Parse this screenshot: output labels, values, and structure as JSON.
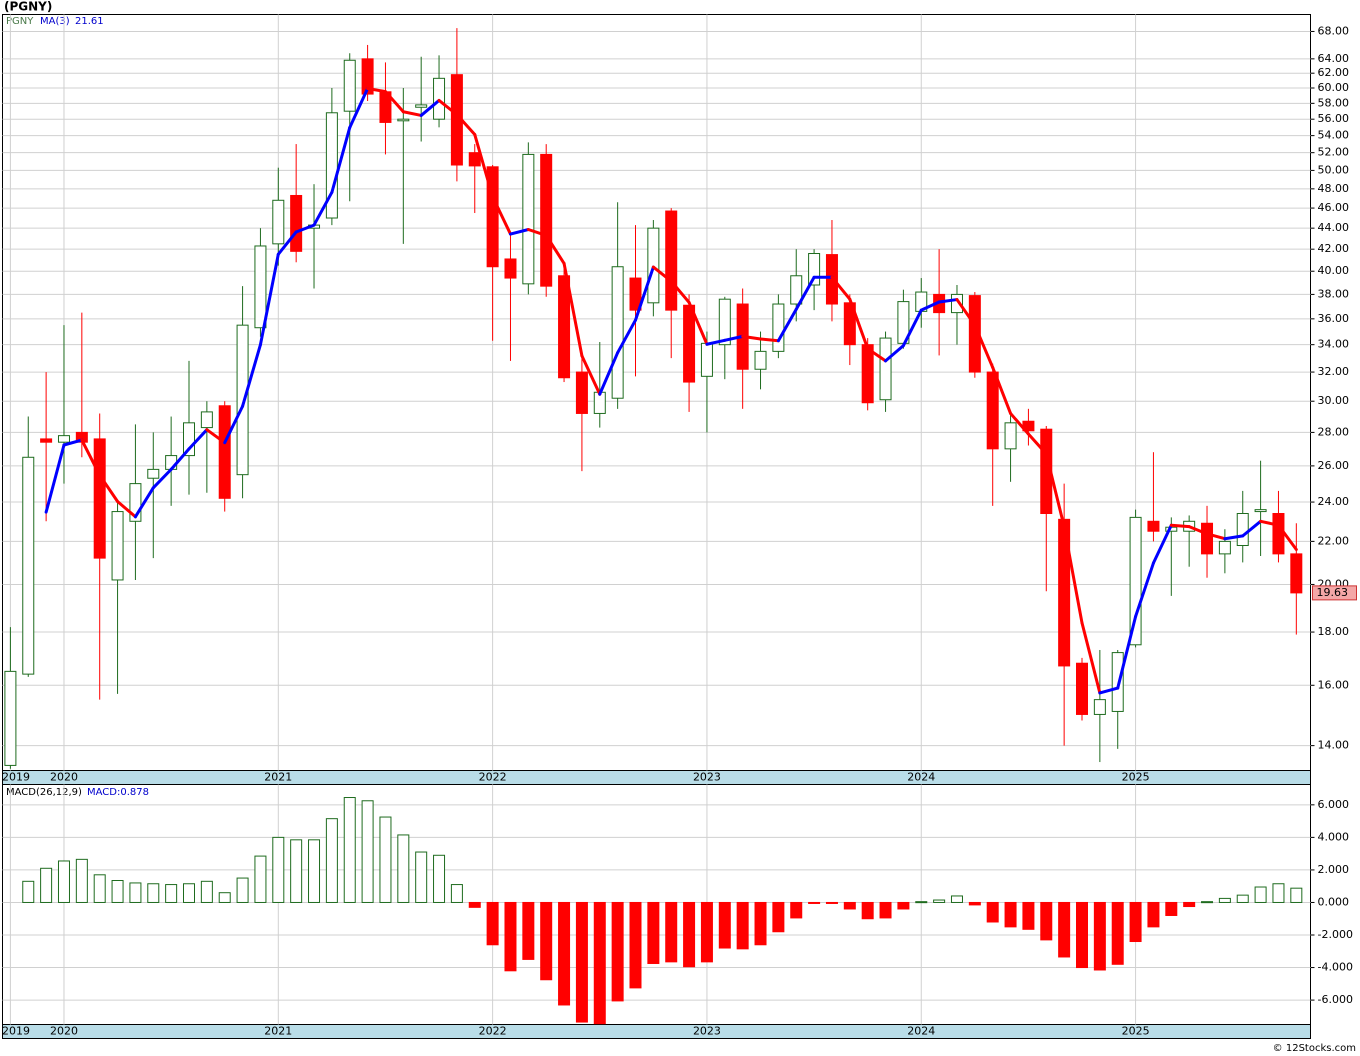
{
  "chart_data": [
    {
      "type": "candlestick",
      "title": "(PGNY)",
      "symbol": "PGNY",
      "categories": [
        "2019",
        null,
        null,
        "2020",
        null,
        null,
        null,
        null,
        null,
        null,
        null,
        null,
        null,
        null,
        null,
        "2021",
        null,
        null,
        null,
        null,
        null,
        null,
        null,
        null,
        null,
        null,
        null,
        "2022",
        null,
        null,
        null,
        null,
        null,
        null,
        null,
        null,
        null,
        null,
        null,
        "2023",
        null,
        null,
        null,
        null,
        null,
        null,
        null,
        null,
        null,
        null,
        null,
        "2024",
        null,
        null,
        null,
        null,
        null,
        null,
        null,
        null,
        null,
        null,
        null,
        "2025",
        null,
        null,
        null,
        null,
        null,
        null,
        null,
        null,
        null
      ],
      "open": [
        13.4,
        16.4,
        27.6,
        27.4,
        28,
        27.6,
        20.2,
        23,
        25.3,
        25.8,
        26.6,
        28.3,
        29.7,
        25.5,
        35.3,
        42.5,
        47.3,
        44,
        45,
        57,
        64,
        59.5,
        55.8,
        57.5,
        56,
        61.8,
        52,
        50.4,
        41.1,
        38.9,
        51.8,
        39.6,
        32,
        29.2,
        30.2,
        39.4,
        37.3,
        45.7,
        37.1,
        31.7,
        34,
        37.2,
        32.2,
        33.5,
        37.2,
        38.8,
        41.5,
        37.3,
        34,
        30.1,
        34.1,
        36.6,
        38,
        36.5,
        37.9,
        32,
        27,
        28.7,
        28.2,
        23.1,
        16.8,
        15,
        15.1,
        17.5,
        23,
        22.5,
        22.5,
        22.9,
        21.4,
        21.8,
        23.5,
        23.4,
        21.4
      ],
      "high": [
        18.2,
        29,
        32,
        35.5,
        36.5,
        29.2,
        24,
        28.5,
        28,
        29,
        32.8,
        30,
        30,
        38.7,
        44,
        50.3,
        53,
        48.5,
        60,
        64.8,
        66,
        63.5,
        60,
        64.3,
        64.5,
        68.5,
        53,
        50.6,
        43.5,
        53.2,
        53,
        40.5,
        33.5,
        34.2,
        46.6,
        44.3,
        44.8,
        46,
        38,
        35,
        37.8,
        38.5,
        35,
        38,
        42,
        42,
        44.8,
        38,
        34.5,
        35,
        38.4,
        39.4,
        42,
        38.8,
        38.2,
        32.6,
        29.2,
        29.5,
        28.4,
        25,
        17,
        17.3,
        17.3,
        23.6,
        26.8,
        23.2,
        23.3,
        23.8,
        22.6,
        24.6,
        26.3,
        24.6,
        22.9
      ],
      "low": [
        13.3,
        16.3,
        23,
        25,
        26.5,
        15.5,
        15.7,
        20.2,
        21.2,
        23.8,
        24.4,
        24.5,
        23.5,
        24.2,
        34.6,
        40.5,
        40.8,
        38.5,
        44.3,
        46.7,
        58.3,
        51.8,
        42.5,
        53.3,
        55,
        48.8,
        45.5,
        34.3,
        32.8,
        38,
        37.8,
        31.3,
        25.7,
        28.3,
        29.5,
        31.7,
        36.2,
        33,
        29.3,
        28,
        31.5,
        29.5,
        30.8,
        33,
        35.8,
        36.7,
        35.8,
        32.5,
        29.4,
        29.3,
        33.7,
        35.3,
        33.2,
        34,
        31.6,
        23.8,
        25.1,
        27.2,
        19.7,
        14,
        14.8,
        13.5,
        13.9,
        17.4,
        22,
        19.5,
        20.8,
        20.3,
        20.5,
        21,
        21.3,
        21,
        17.9
      ],
      "close": [
        16.5,
        26.5,
        27.4,
        27.8,
        27.4,
        21.2,
        23.5,
        25,
        25.8,
        26.6,
        28.6,
        29.3,
        24.2,
        35.5,
        42.3,
        46.8,
        41.8,
        44.3,
        56.8,
        63.8,
        59.2,
        55.6,
        56,
        57.8,
        61.3,
        50.6,
        50.5,
        40.4,
        39.4,
        51.8,
        38.7,
        31.6,
        29.2,
        30.6,
        40.4,
        36.7,
        44,
        36.7,
        31.3,
        34.1,
        37.6,
        32.2,
        33.5,
        37.2,
        39.6,
        41.6,
        37.2,
        34,
        29.9,
        34.5,
        37.4,
        38.2,
        36.5,
        38,
        32,
        27,
        28.6,
        28.1,
        23.4,
        16.7,
        15,
        15.5,
        17.2,
        23.2,
        22.5,
        22.7,
        23,
        21.4,
        22,
        23.4,
        23.6,
        21.4,
        19.63
      ],
      "up_color": "#1e6b1e",
      "down_color": "#ff0000",
      "ma": {
        "name": "MA(3)",
        "up_color": "#0000ff",
        "down_color": "#ff0000",
        "values": [
          null,
          null,
          23.47,
          27.23,
          27.53,
          25.47,
          24.03,
          23.23,
          24.77,
          25.8,
          27.0,
          28.17,
          27.37,
          29.67,
          34.0,
          41.53,
          43.63,
          44.3,
          47.63,
          54.97,
          59.93,
          59.53,
          56.93,
          56.47,
          58.37,
          56.57,
          54.13,
          47.17,
          43.43,
          43.87,
          43.3,
          40.7,
          33.17,
          30.47,
          33.4,
          35.9,
          40.37,
          39.13,
          37.33,
          34.03,
          34.33,
          34.63,
          34.43,
          34.3,
          36.77,
          39.47,
          39.47,
          37.6,
          33.7,
          32.8,
          33.93,
          36.7,
          37.37,
          37.57,
          35.5,
          32.33,
          29.2,
          27.9,
          26.7,
          22.73,
          18.37,
          15.73,
          15.9,
          18.63,
          20.97,
          22.8,
          22.73,
          22.37,
          22.13,
          22.27,
          23.0,
          22.8,
          21.61
        ]
      },
      "log": true,
      "grid": true,
      "ylim": [
        13.25,
        70.6
      ],
      "yticks": [
        {
          "value": 68,
          "label": "68.00"
        },
        {
          "value": 64,
          "label": "64.00"
        },
        {
          "value": 62,
          "label": "62.00"
        },
        {
          "value": 60,
          "label": "60.00"
        },
        {
          "value": 58,
          "label": "58.00"
        },
        {
          "value": 56,
          "label": "56.00"
        },
        {
          "value": 54,
          "label": "54.00"
        },
        {
          "value": 52,
          "label": "52.00"
        },
        {
          "value": 50,
          "label": "50.00"
        },
        {
          "value": 48,
          "label": "48.00"
        },
        {
          "value": 46,
          "label": "46.00"
        },
        {
          "value": 44,
          "label": "44.00"
        },
        {
          "value": 42,
          "label": "42.00"
        },
        {
          "value": 40,
          "label": "40.00"
        },
        {
          "value": 38,
          "label": "38.00"
        },
        {
          "value": 36,
          "label": "36.00"
        },
        {
          "value": 34,
          "label": "34.00"
        },
        {
          "value": 32,
          "label": "32.00"
        },
        {
          "value": 30,
          "label": "30.00"
        },
        {
          "value": 28,
          "label": "28.00"
        },
        {
          "value": 26,
          "label": "26.00"
        },
        {
          "value": 24,
          "label": "24.00"
        },
        {
          "value": 22,
          "label": "22.00"
        },
        {
          "value": 20,
          "label": "20.00"
        },
        {
          "value": 18,
          "label": "18.00"
        },
        {
          "value": 16,
          "label": "16.00"
        },
        {
          "value": 14,
          "label": "14.00"
        }
      ]
    },
    {
      "type": "bar",
      "name": "MACD(26,12,9)",
      "legend": "MACD:0.878",
      "pos_color": "#1e6b1e",
      "neg_color": "#ff0000",
      "grid": true,
      "values": [
        null,
        1.3,
        2.1,
        2.55,
        2.65,
        1.7,
        1.35,
        1.2,
        1.15,
        1.1,
        1.15,
        1.3,
        0.6,
        1.5,
        2.85,
        4.0,
        3.85,
        3.85,
        5.15,
        6.45,
        6.25,
        5.25,
        4.15,
        3.1,
        2.9,
        1.1,
        -0.3,
        -2.6,
        -4.2,
        -3.5,
        -4.75,
        -6.3,
        -7.35,
        -7.45,
        -6.05,
        -5.25,
        -3.75,
        -3.65,
        -3.95,
        -3.65,
        -2.8,
        -2.85,
        -2.6,
        -1.8,
        -0.95,
        -0.05,
        -0.05,
        -0.4,
        -1.0,
        -0.95,
        -0.4,
        0.05,
        0.15,
        0.4,
        -0.15,
        -1.2,
        -1.5,
        -1.65,
        -2.3,
        -3.35,
        -4.0,
        -4.15,
        -3.8,
        -2.4,
        -1.5,
        -0.8,
        -0.25,
        0.05,
        0.25,
        0.45,
        0.95,
        1.15,
        0.878
      ],
      "ylim": [
        -7.5,
        7.25
      ],
      "yticks": [
        {
          "value": 6,
          "label": "6.000"
        },
        {
          "value": 4,
          "label": "4.000"
        },
        {
          "value": 2,
          "label": "2.000"
        },
        {
          "value": 0,
          "label": "0.000"
        },
        {
          "value": -2,
          "label": "-2.000"
        },
        {
          "value": -4,
          "label": "-4.000"
        },
        {
          "value": -6,
          "label": "-6.000"
        }
      ]
    }
  ],
  "copyright": "© 12Stocks.com"
}
